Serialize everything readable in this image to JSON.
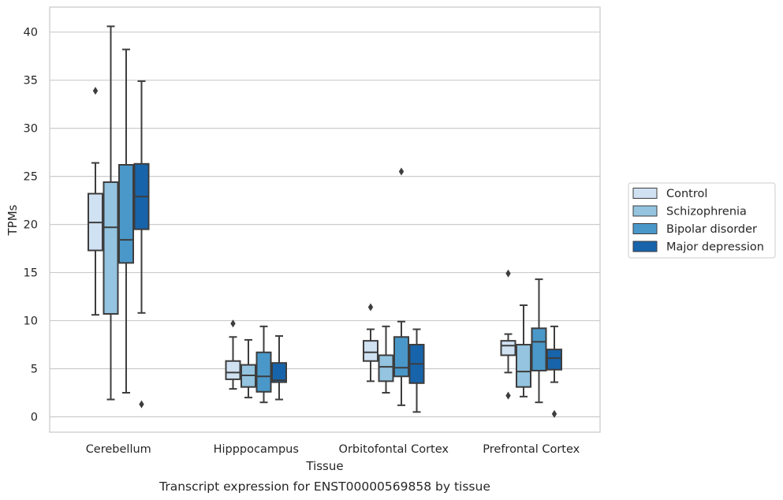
{
  "chart_data": {
    "type": "box",
    "title": "Transcript expression for ENST00000569858 by tissue",
    "xlabel": "Tissue",
    "ylabel": "TPMs",
    "ylim": [
      -1.6,
      42.6
    ],
    "yticks": [
      0,
      5,
      10,
      15,
      20,
      25,
      30,
      35,
      40
    ],
    "grid": true,
    "legend_position": "outside-right",
    "categories": [
      "Cerebellum",
      "Hipppocampus",
      "Orbitofontal Cortex",
      "Prefrontal Cortex"
    ],
    "series": [
      {
        "name": "Control",
        "color": "#d0e1f2",
        "boxes": [
          {
            "whislo": 10.6,
            "q1": 17.3,
            "med": 20.2,
            "q3": 23.2,
            "whishi": 26.4,
            "fliers": [
              33.9
            ]
          },
          {
            "whislo": 2.9,
            "q1": 3.9,
            "med": 4.6,
            "q3": 5.8,
            "whishi": 8.3,
            "fliers": [
              9.7
            ]
          },
          {
            "whislo": 3.7,
            "q1": 5.8,
            "med": 6.7,
            "q3": 7.9,
            "whishi": 9.1,
            "fliers": [
              11.4
            ]
          },
          {
            "whislo": 4.6,
            "q1": 6.4,
            "med": 7.4,
            "q3": 7.9,
            "whishi": 8.6,
            "fliers": [
              14.9,
              2.2
            ]
          }
        ]
      },
      {
        "name": "Schizophrenia",
        "color": "#94c4df",
        "boxes": [
          {
            "whislo": 1.8,
            "q1": 10.7,
            "med": 19.7,
            "q3": 24.4,
            "whishi": 40.6,
            "fliers": []
          },
          {
            "whislo": 2.0,
            "q1": 3.1,
            "med": 4.3,
            "q3": 5.4,
            "whishi": 8.0,
            "fliers": []
          },
          {
            "whislo": 2.5,
            "q1": 3.7,
            "med": 5.2,
            "q3": 6.4,
            "whishi": 9.4,
            "fliers": []
          },
          {
            "whislo": 2.1,
            "q1": 3.1,
            "med": 4.7,
            "q3": 7.5,
            "whishi": 11.6,
            "fliers": []
          }
        ]
      },
      {
        "name": "Bipolar disorder",
        "color": "#4a98c9",
        "boxes": [
          {
            "whislo": 2.5,
            "q1": 16.0,
            "med": 18.4,
            "q3": 26.2,
            "whishi": 38.2,
            "fliers": []
          },
          {
            "whislo": 1.5,
            "q1": 2.6,
            "med": 4.2,
            "q3": 6.7,
            "whishi": 9.4,
            "fliers": []
          },
          {
            "whislo": 1.2,
            "q1": 4.2,
            "med": 5.1,
            "q3": 8.3,
            "whishi": 9.9,
            "fliers": [
              25.5
            ]
          },
          {
            "whislo": 1.5,
            "q1": 4.8,
            "med": 7.8,
            "q3": 9.2,
            "whishi": 14.3,
            "fliers": []
          }
        ]
      },
      {
        "name": "Major depression",
        "color": "#1764ab",
        "boxes": [
          {
            "whislo": 10.8,
            "q1": 19.5,
            "med": 22.9,
            "q3": 26.3,
            "whishi": 34.9,
            "fliers": [
              1.3
            ]
          },
          {
            "whislo": 1.8,
            "q1": 3.6,
            "med": 3.8,
            "q3": 5.6,
            "whishi": 8.4,
            "fliers": []
          },
          {
            "whislo": 0.5,
            "q1": 3.5,
            "med": 5.5,
            "q3": 7.5,
            "whishi": 9.1,
            "fliers": []
          },
          {
            "whislo": 3.6,
            "q1": 4.9,
            "med": 6.1,
            "q3": 7.0,
            "whishi": 9.4,
            "fliers": [
              0.3
            ]
          }
        ]
      }
    ]
  }
}
